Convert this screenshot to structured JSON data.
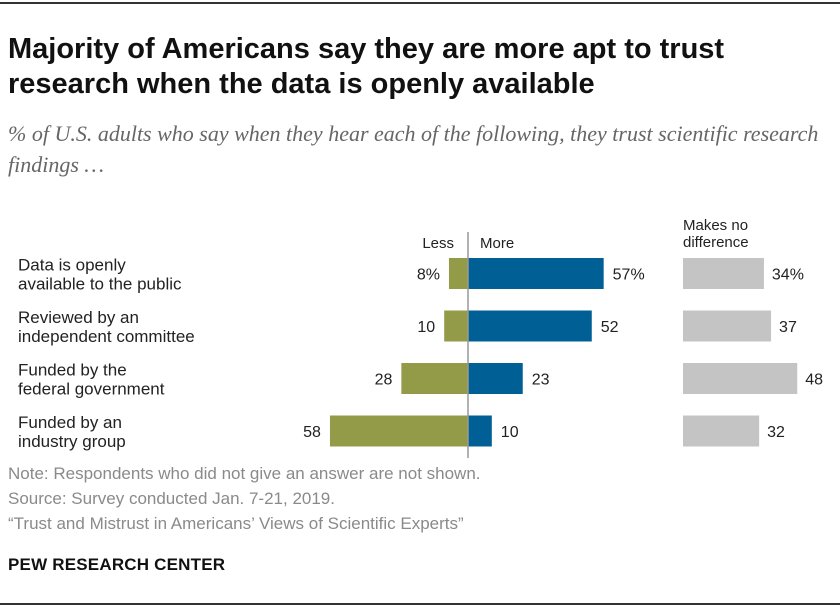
{
  "title": "Majority of Americans say they are more apt to trust research when the data is openly available",
  "subtitle": "% of U.S. adults who say when they hear each of the following, they trust scientific research findings …",
  "chart_data": {
    "type": "bar",
    "orientation": "horizontal-diverging",
    "categories": [
      [
        "Data is openly",
        "available to the public"
      ],
      [
        "Reviewed by an",
        "independent committee"
      ],
      [
        "Funded by the",
        "federal government"
      ],
      [
        "Funded by an",
        "industry group"
      ]
    ],
    "series": [
      {
        "name": "Less",
        "values": [
          8,
          10,
          28,
          58
        ],
        "labels": [
          "8%",
          "10",
          "28",
          "58"
        ],
        "color": "#949b48"
      },
      {
        "name": "More",
        "values": [
          57,
          52,
          23,
          10
        ],
        "labels": [
          "57%",
          "52",
          "23",
          "10"
        ],
        "color": "#005f94"
      },
      {
        "name": "Makes no difference",
        "legend_lines": [
          "Makes no",
          "difference"
        ],
        "values": [
          34,
          37,
          48,
          32
        ],
        "labels": [
          "34%",
          "37",
          "48",
          "32"
        ],
        "color": "#c4c4c4"
      }
    ]
  },
  "notes": {
    "note": "Note: Respondents who did not give an answer are not shown.",
    "source": "Source: Survey conducted Jan. 7-21, 2019.",
    "report": "“Trust and Mistrust in Americans’ Views of Scientific Experts”"
  },
  "footer": "PEW RESEARCH CENTER"
}
